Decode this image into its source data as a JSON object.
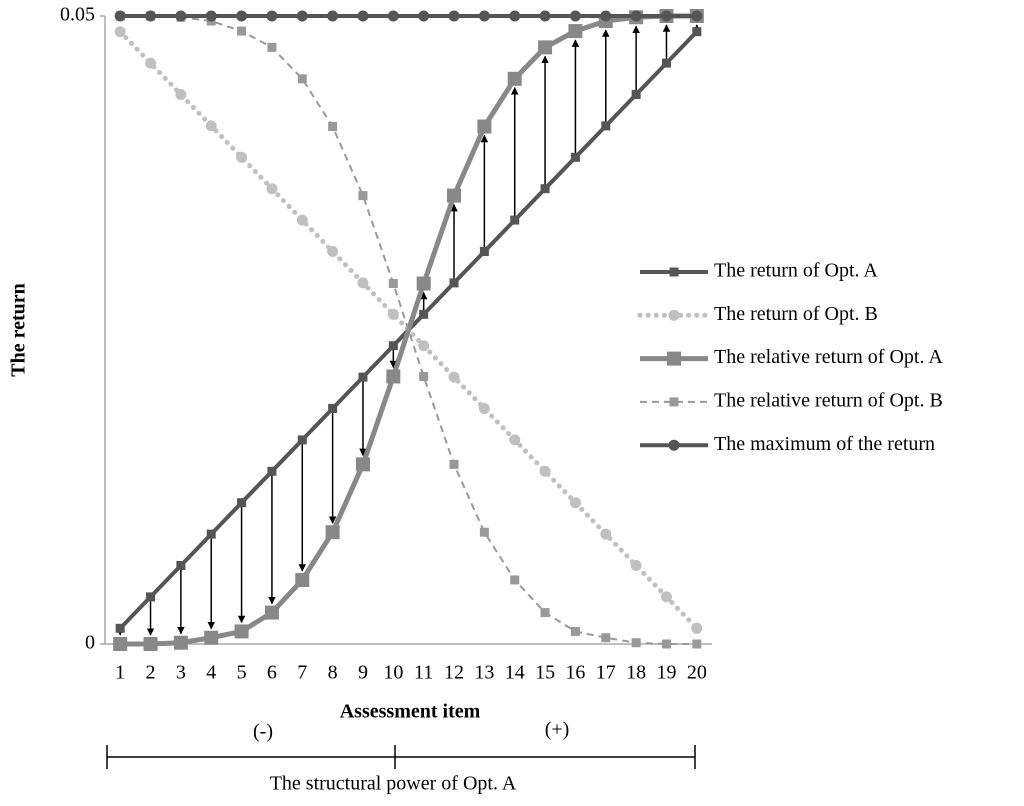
{
  "chart_data": {
    "type": "line",
    "y_label": "The return",
    "x_label": "Assessment item",
    "categories": [
      "1",
      "2",
      "3",
      "4",
      "5",
      "6",
      "7",
      "8",
      "9",
      "10",
      "11",
      "12",
      "13",
      "14",
      "15",
      "16",
      "17",
      "18",
      "19",
      "20"
    ],
    "ylim": [
      0,
      0.05
    ],
    "yticks": [
      0,
      0.05
    ],
    "grid": false,
    "legend": "right",
    "series": [
      {
        "name": "The return of Opt. A",
        "color": "#555555",
        "style": "solid",
        "marker": "square",
        "values": [
          0.00125,
          0.00375,
          0.00625,
          0.00875,
          0.01125,
          0.01375,
          0.01625,
          0.01875,
          0.02125,
          0.02375,
          0.02625,
          0.02875,
          0.03125,
          0.03375,
          0.03625,
          0.03875,
          0.04125,
          0.04375,
          0.04625,
          0.04875
        ]
      },
      {
        "name": "The return of Opt. B",
        "color": "#c0c0c0",
        "style": "dotted",
        "marker": "circle",
        "values": [
          0.04875,
          0.04625,
          0.04375,
          0.04125,
          0.03875,
          0.03625,
          0.03375,
          0.03125,
          0.02875,
          0.02625,
          0.02375,
          0.02125,
          0.01875,
          0.01625,
          0.01375,
          0.01125,
          0.00875,
          0.00625,
          0.00375,
          0.00125
        ]
      },
      {
        "name": "The relative return of Opt. A",
        "color": "#888888",
        "style": "thick",
        "marker": "big-square",
        "values": [
          0,
          0,
          0.0001,
          0.0005,
          0.001,
          0.0025,
          0.0051,
          0.0089,
          0.0143,
          0.0213,
          0.0287,
          0.0357,
          0.0412,
          0.045,
          0.0475,
          0.0488,
          0.0496,
          0.0499,
          0.05,
          0.05
        ]
      },
      {
        "name": "The relative return of Opt. B",
        "color": "#999999",
        "style": "dashed",
        "marker": "square",
        "values": [
          0.05,
          0.05,
          0.0499,
          0.0496,
          0.0488,
          0.0475,
          0.045,
          0.0412,
          0.0357,
          0.0287,
          0.0213,
          0.0143,
          0.0089,
          0.0051,
          0.0025,
          0.001,
          0.0005,
          0.0001,
          0,
          0
        ]
      },
      {
        "name": "The maximum of the return",
        "color": "#555555",
        "style": "solid",
        "marker": "circle",
        "values": [
          0.05,
          0.05,
          0.05,
          0.05,
          0.05,
          0.05,
          0.05,
          0.05,
          0.05,
          0.05,
          0.05,
          0.05,
          0.05,
          0.05,
          0.05,
          0.05,
          0.05,
          0.05,
          0.05,
          0.05
        ]
      }
    ],
    "annotations": [
      "(-)",
      "(+)",
      "The structural power of Opt. A"
    ]
  }
}
